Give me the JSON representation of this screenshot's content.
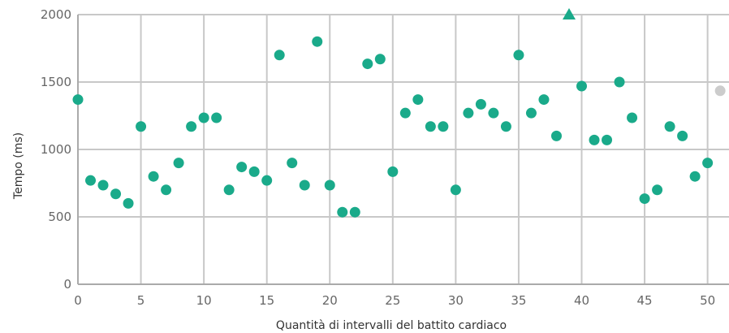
{
  "chart_data": {
    "type": "scatter",
    "title": "",
    "xlabel": "Quantità di intervalli del battito cardiaco",
    "ylabel": "Tempo (ms)",
    "xlim": [
      0,
      51.7
    ],
    "ylim": [
      0,
      2000
    ],
    "x_ticks": [
      0,
      5,
      10,
      15,
      20,
      25,
      30,
      35,
      40,
      45,
      50
    ],
    "y_ticks": [
      0,
      500,
      1000,
      1500,
      2000
    ],
    "grid": true,
    "colors": {
      "point": "#1aaa8a",
      "faded_point": "#cccccc",
      "grid": "#c8c8c8"
    },
    "points": [
      {
        "x": 0,
        "y": 1370
      },
      {
        "x": 1,
        "y": 770
      },
      {
        "x": 2,
        "y": 735
      },
      {
        "x": 3,
        "y": 670
      },
      {
        "x": 4,
        "y": 600
      },
      {
        "x": 5,
        "y": 1170
      },
      {
        "x": 6,
        "y": 800
      },
      {
        "x": 7,
        "y": 700
      },
      {
        "x": 8,
        "y": 900
      },
      {
        "x": 9,
        "y": 1170
      },
      {
        "x": 10,
        "y": 1235
      },
      {
        "x": 11,
        "y": 1235
      },
      {
        "x": 12,
        "y": 700
      },
      {
        "x": 13,
        "y": 870
      },
      {
        "x": 14,
        "y": 835
      },
      {
        "x": 15,
        "y": 770
      },
      {
        "x": 16,
        "y": 1700
      },
      {
        "x": 17,
        "y": 900
      },
      {
        "x": 18,
        "y": 735
      },
      {
        "x": 19,
        "y": 1800
      },
      {
        "x": 20,
        "y": 735
      },
      {
        "x": 21,
        "y": 535
      },
      {
        "x": 22,
        "y": 535
      },
      {
        "x": 23,
        "y": 1635
      },
      {
        "x": 24,
        "y": 1670
      },
      {
        "x": 25,
        "y": 835
      },
      {
        "x": 26,
        "y": 1270
      },
      {
        "x": 27,
        "y": 1370
      },
      {
        "x": 28,
        "y": 1170
      },
      {
        "x": 29,
        "y": 1170
      },
      {
        "x": 30,
        "y": 700
      },
      {
        "x": 31,
        "y": 1270
      },
      {
        "x": 32,
        "y": 1335
      },
      {
        "x": 33,
        "y": 1270
      },
      {
        "x": 34,
        "y": 1170
      },
      {
        "x": 35,
        "y": 1700
      },
      {
        "x": 36,
        "y": 1270
      },
      {
        "x": 37,
        "y": 1370
      },
      {
        "x": 38,
        "y": 1100
      },
      {
        "x": 39,
        "y": 2000,
        "marker": "triangle"
      },
      {
        "x": 40,
        "y": 1470
      },
      {
        "x": 41,
        "y": 1070
      },
      {
        "x": 42,
        "y": 1070
      },
      {
        "x": 43,
        "y": 1500
      },
      {
        "x": 44,
        "y": 1235
      },
      {
        "x": 45,
        "y": 635
      },
      {
        "x": 46,
        "y": 700
      },
      {
        "x": 47,
        "y": 1170
      },
      {
        "x": 48,
        "y": 1100
      },
      {
        "x": 49,
        "y": 800
      },
      {
        "x": 50,
        "y": 900
      },
      {
        "x": 51,
        "y": 1435,
        "faded": true
      }
    ]
  }
}
